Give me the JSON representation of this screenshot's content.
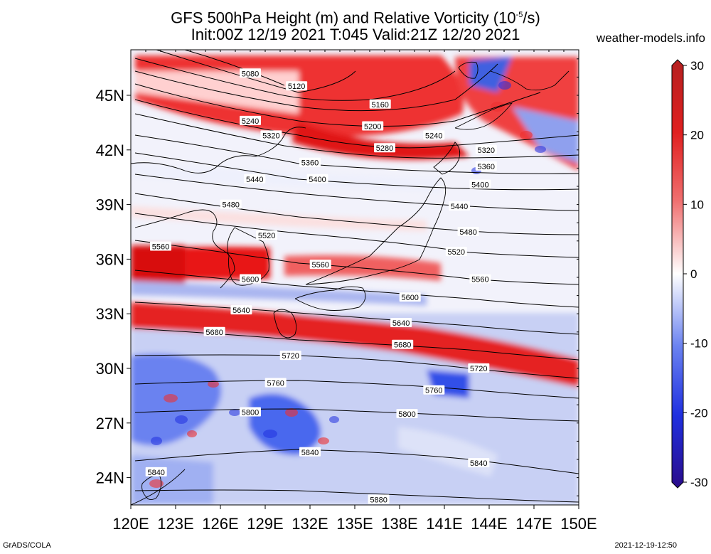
{
  "title": {
    "line1_main": "GFS 500hPa Height (m) and Relative Vorticity (10",
    "line1_sup": "-5",
    "line1_tail": "/s)",
    "line2": "Init:00Z 12/19 2021 T:045 Valid:21Z 12/20 2021"
  },
  "watermark": "weather-models.info",
  "footer_left": "GrADS/COLA",
  "footer_right": "2021-12-19-12:50",
  "map": {
    "lon_labels": [
      "120E",
      "123E",
      "126E",
      "129E",
      "132E",
      "135E",
      "138E",
      "141E",
      "144E",
      "147E",
      "150E"
    ],
    "lat_labels": [
      "45N",
      "42N",
      "39N",
      "36N",
      "33N",
      "30N",
      "27N",
      "24N"
    ],
    "lon_range": [
      120,
      150
    ],
    "lat_range": [
      22.5,
      47.5
    ],
    "contour_labels": [
      {
        "text": "5080",
        "lon": 128.0,
        "lat": 46.2
      },
      {
        "text": "5120",
        "lon": 131.1,
        "lat": 45.5
      },
      {
        "text": "5160",
        "lon": 136.7,
        "lat": 44.5
      },
      {
        "text": "5200",
        "lon": 136.2,
        "lat": 43.3
      },
      {
        "text": "5240",
        "lon": 128.0,
        "lat": 43.6
      },
      {
        "text": "5240",
        "lon": 140.3,
        "lat": 42.8
      },
      {
        "text": "5280",
        "lon": 137.0,
        "lat": 42.1
      },
      {
        "text": "5320",
        "lon": 129.4,
        "lat": 42.8
      },
      {
        "text": "5320",
        "lon": 143.8,
        "lat": 42.0
      },
      {
        "text": "5360",
        "lon": 132.0,
        "lat": 41.3
      },
      {
        "text": "5360",
        "lon": 143.8,
        "lat": 41.1
      },
      {
        "text": "5400",
        "lon": 132.5,
        "lat": 40.4
      },
      {
        "text": "5400",
        "lon": 143.4,
        "lat": 40.1
      },
      {
        "text": "5440",
        "lon": 128.3,
        "lat": 40.4
      },
      {
        "text": "5440",
        "lon": 142.0,
        "lat": 38.9
      },
      {
        "text": "5480",
        "lon": 126.7,
        "lat": 39.0
      },
      {
        "text": "5480",
        "lon": 142.6,
        "lat": 37.5
      },
      {
        "text": "5520",
        "lon": 129.1,
        "lat": 37.3
      },
      {
        "text": "5520",
        "lon": 141.8,
        "lat": 36.4
      },
      {
        "text": "5560",
        "lon": 122.0,
        "lat": 36.7
      },
      {
        "text": "5560",
        "lon": 132.7,
        "lat": 35.7
      },
      {
        "text": "5560",
        "lon": 143.4,
        "lat": 34.9
      },
      {
        "text": "5600",
        "lon": 128.0,
        "lat": 34.9
      },
      {
        "text": "5600",
        "lon": 138.7,
        "lat": 33.9
      },
      {
        "text": "5640",
        "lon": 127.4,
        "lat": 33.2
      },
      {
        "text": "5640",
        "lon": 138.1,
        "lat": 32.5
      },
      {
        "text": "5680",
        "lon": 125.6,
        "lat": 32.0
      },
      {
        "text": "5680",
        "lon": 138.2,
        "lat": 31.3
      },
      {
        "text": "5720",
        "lon": 130.7,
        "lat": 30.7
      },
      {
        "text": "5720",
        "lon": 143.3,
        "lat": 30.0
      },
      {
        "text": "5760",
        "lon": 129.7,
        "lat": 29.2
      },
      {
        "text": "5760",
        "lon": 140.3,
        "lat": 28.8
      },
      {
        "text": "5800",
        "lon": 128.0,
        "lat": 27.6
      },
      {
        "text": "5800",
        "lon": 138.5,
        "lat": 27.5
      },
      {
        "text": "5840",
        "lon": 132.0,
        "lat": 25.4
      },
      {
        "text": "5840",
        "lon": 143.3,
        "lat": 24.8
      },
      {
        "text": "5840",
        "lon": 121.7,
        "lat": 24.3
      },
      {
        "text": "5880",
        "lon": 136.6,
        "lat": 22.8
      }
    ]
  },
  "colorbar": {
    "ticks": [
      "30",
      "20",
      "10",
      "0",
      "-10",
      "-20",
      "-30"
    ],
    "max_color": "#b52020",
    "zero_color": "#ffffff",
    "min_color": "#2a0c8a"
  },
  "colors": {
    "positive_vorticity": "#e02020",
    "negative_vorticity": "#2040e0",
    "contour_line": "#000000",
    "coastline": "#000000"
  }
}
